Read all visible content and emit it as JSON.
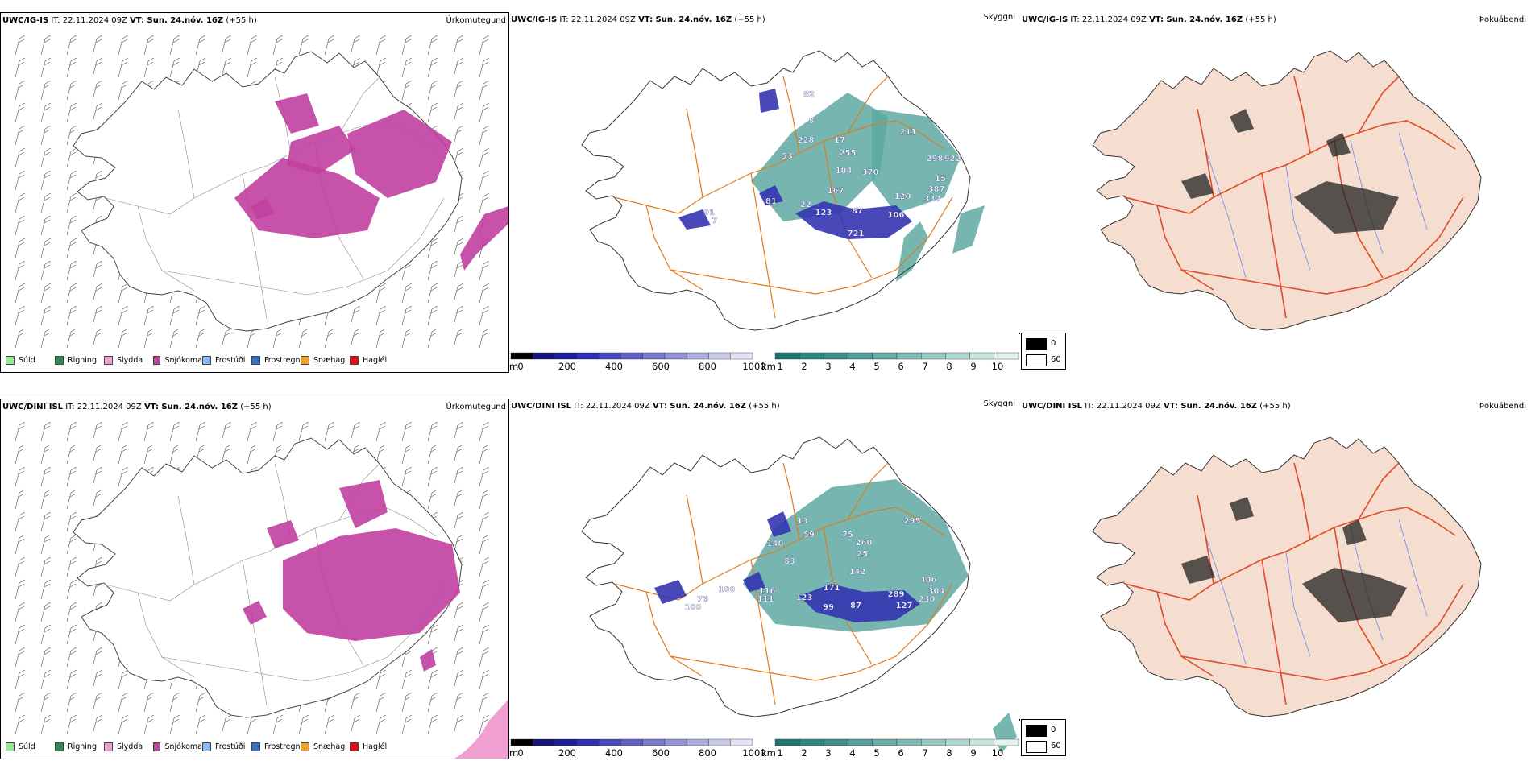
{
  "rows": [
    {
      "model": "UWC/IG-IS",
      "it_label": "IT: 22.11.2024 09Z",
      "vt_label": "VT: Sun. 24.nóv. 16Z",
      "lead": "(+55 h)",
      "map_labels": {
        "cloud_height": [
          "82",
          "8",
          "228",
          "53",
          "17",
          "255",
          "104",
          "370",
          "211",
          "298",
          "922",
          "15",
          "387",
          "332",
          "120",
          "167",
          "22",
          "123",
          "87",
          "106",
          "721",
          "81",
          "91",
          "7"
        ]
      }
    },
    {
      "model": "UWC/DINI ISL",
      "it_label": "IT: 22.11.2024 09Z",
      "vt_label": "VT: Sun. 24.nóv. 16Z",
      "lead": "(+55 h)",
      "map_labels": {
        "cloud_height": [
          "13",
          "59",
          "140",
          "83",
          "75",
          "260",
          "25",
          "295",
          "142",
          "171",
          "289",
          "406",
          "304",
          "116",
          "111",
          "123",
          "99",
          "87",
          "127",
          "230",
          "76",
          "100",
          "100"
        ]
      }
    }
  ],
  "panel_titles": {
    "precip": "Úrkomutegund",
    "cloud": "Skyggni",
    "fog": "Þokuábendi"
  },
  "precip_legend": [
    {
      "label": "Súld",
      "color": "#90ee90"
    },
    {
      "label": "Rigning",
      "color": "#2e8b57"
    },
    {
      "label": "Slydda",
      "color": "#f0a0d0"
    },
    {
      "label": "Snjókoma",
      "color": "#c040a0"
    },
    {
      "label": "Frostúði",
      "color": "#87b8f0"
    },
    {
      "label": "Frostregn",
      "color": "#3a6fc8"
    },
    {
      "label": "Snæhagl",
      "color": "#f0a020"
    },
    {
      "label": "Haglél",
      "color": "#e01010"
    }
  ],
  "ceiling_scale": {
    "unit": "m",
    "ticks": [
      "0",
      "200",
      "400",
      "600",
      "800",
      "1000"
    ],
    "colors": [
      "#000000",
      "#14147a",
      "#1e1e9c",
      "#3030b0",
      "#4848bc",
      "#6060c4",
      "#7a7acc",
      "#9494d6",
      "#aeaede",
      "#c8c8e8",
      "#e2e2f4"
    ]
  },
  "visibility_scale": {
    "unit": "km",
    "ticks": [
      "1",
      "2",
      "3",
      "4",
      "5",
      "6",
      "7",
      "8",
      "9",
      "10"
    ],
    "colors": [
      "#1d7470",
      "#2d8580",
      "#3d908a",
      "#559e98",
      "#6aaca6",
      "#80bab4",
      "#98c8c2",
      "#b0d6d0",
      "#c8e4de",
      "#e4f2ee"
    ]
  },
  "fog_legend": [
    {
      "label": "0",
      "color": "#000000"
    },
    {
      "label": "60",
      "color": "#ffffff"
    }
  ]
}
